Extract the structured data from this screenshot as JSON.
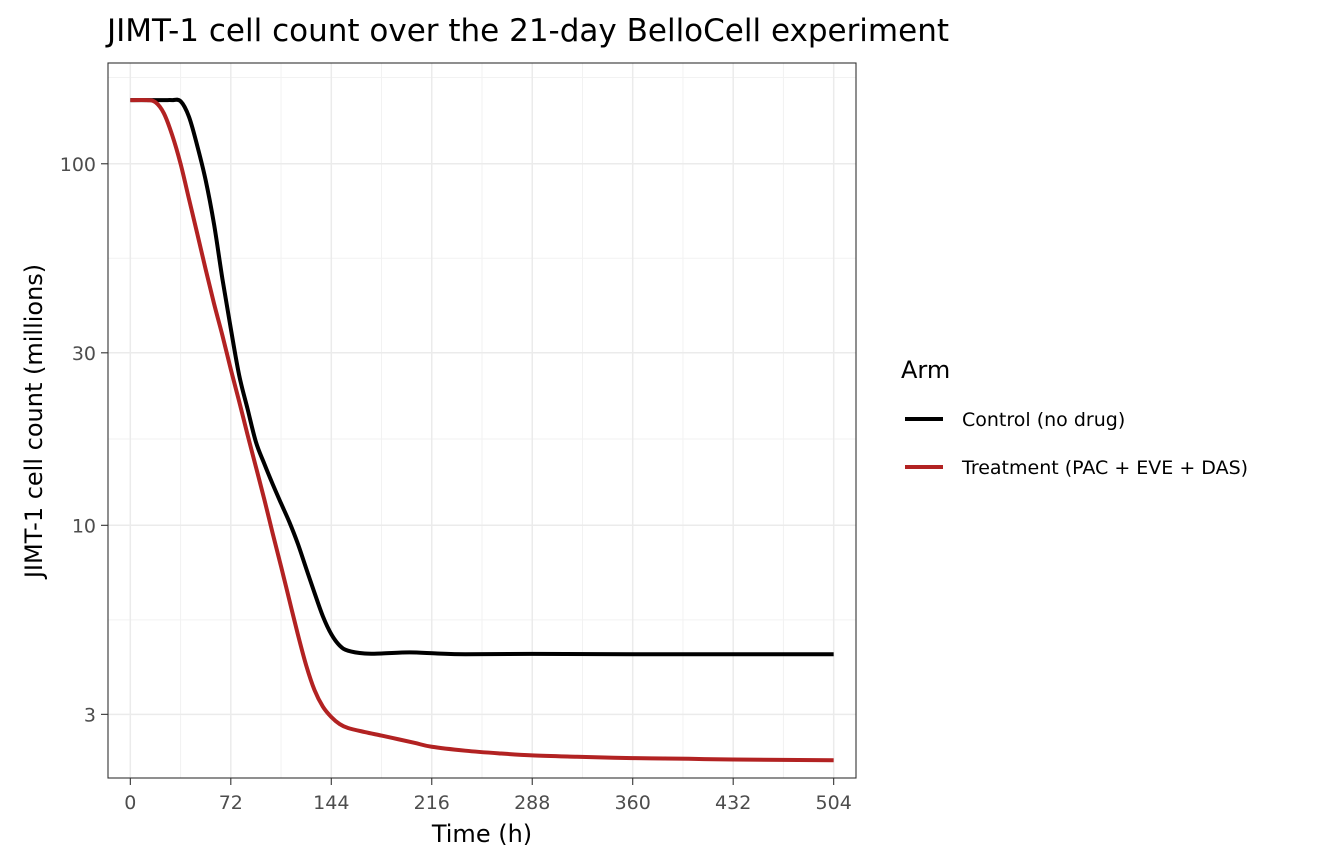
{
  "chart_data": {
    "type": "line",
    "title": "JIMT-1 cell count over the 21-day BelloCell experiment",
    "xlabel": "Time (h)",
    "ylabel": "JIMT-1 cell count (millions)",
    "x_scale": "linear",
    "y_scale": "log10",
    "xlim": [
      -16,
      520
    ],
    "ylim": [
      2.0,
      190
    ],
    "x_ticks": [
      0,
      72,
      144,
      216,
      288,
      360,
      432,
      504
    ],
    "x_tick_labels": [
      "0",
      "72",
      "144",
      "216",
      "288",
      "360",
      "432",
      "504"
    ],
    "y_ticks": [
      3,
      10,
      30,
      100
    ],
    "y_tick_labels": [
      "3",
      "10",
      "30",
      "100"
    ],
    "grid": true,
    "legend": {
      "title": "Arm",
      "position": "right"
    },
    "series": [
      {
        "name": "Control (no drug)",
        "color": "#000000",
        "points": [
          [
            0,
            150
          ],
          [
            12,
            150
          ],
          [
            24,
            150
          ],
          [
            30,
            150
          ],
          [
            36,
            149
          ],
          [
            42,
            135
          ],
          [
            48,
            112
          ],
          [
            54,
            90
          ],
          [
            60,
            68
          ],
          [
            66,
            48
          ],
          [
            72,
            35
          ],
          [
            78,
            26
          ],
          [
            84,
            21
          ],
          [
            90,
            17
          ],
          [
            96,
            14.8
          ],
          [
            102,
            13
          ],
          [
            108,
            11.5
          ],
          [
            114,
            10.2
          ],
          [
            120,
            8.9
          ],
          [
            126,
            7.6
          ],
          [
            132,
            6.5
          ],
          [
            138,
            5.6
          ],
          [
            144,
            5.0
          ],
          [
            150,
            4.65
          ],
          [
            156,
            4.5
          ],
          [
            168,
            4.42
          ],
          [
            180,
            4.42
          ],
          [
            200,
            4.45
          ],
          [
            220,
            4.42
          ],
          [
            240,
            4.4
          ],
          [
            288,
            4.41
          ],
          [
            360,
            4.4
          ],
          [
            432,
            4.4
          ],
          [
            504,
            4.4
          ]
        ]
      },
      {
        "name": "Treatment (PAC + EVE + DAS)",
        "color": "#b22222",
        "points": [
          [
            0,
            150
          ],
          [
            12,
            150
          ],
          [
            18,
            148
          ],
          [
            24,
            138
          ],
          [
            30,
            120
          ],
          [
            36,
            100
          ],
          [
            42,
            80
          ],
          [
            48,
            64
          ],
          [
            54,
            51
          ],
          [
            60,
            41
          ],
          [
            66,
            33.5
          ],
          [
            72,
            27
          ],
          [
            78,
            22
          ],
          [
            84,
            17.8
          ],
          [
            90,
            14.5
          ],
          [
            96,
            11.8
          ],
          [
            102,
            9.5
          ],
          [
            108,
            7.7
          ],
          [
            114,
            6.2
          ],
          [
            120,
            5.0
          ],
          [
            126,
            4.1
          ],
          [
            132,
            3.5
          ],
          [
            138,
            3.15
          ],
          [
            144,
            2.95
          ],
          [
            150,
            2.82
          ],
          [
            156,
            2.75
          ],
          [
            168,
            2.68
          ],
          [
            180,
            2.62
          ],
          [
            192,
            2.56
          ],
          [
            204,
            2.5
          ],
          [
            216,
            2.44
          ],
          [
            240,
            2.38
          ],
          [
            264,
            2.34
          ],
          [
            288,
            2.31
          ],
          [
            320,
            2.29
          ],
          [
            360,
            2.27
          ],
          [
            400,
            2.26
          ],
          [
            432,
            2.25
          ],
          [
            504,
            2.24
          ]
        ]
      }
    ]
  }
}
